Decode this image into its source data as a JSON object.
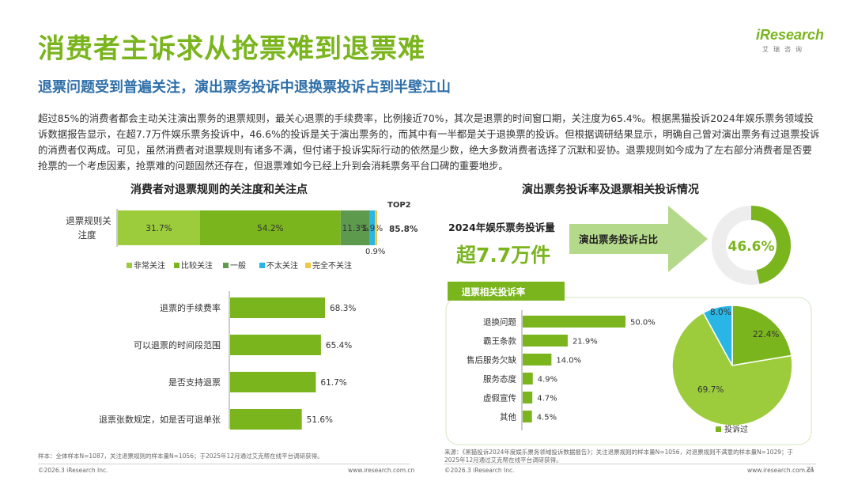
{
  "header": {
    "title": "消费者主诉求从抢票难到退票难",
    "subtitle": "退票问题受到普遍关注，演出票务投诉中退换票投诉占到半壁江山",
    "logo_main": "iResearch",
    "logo_sub": "艾瑞咨询"
  },
  "intro": "超过85%的消费者都会主动关注演出票务的退票规则，最关心退票的手续费率，比例接近70%，其次是退票的时间窗口期，关注度为65.4%。根据黑猫投诉2024年娱乐票务领域投诉数据报告显示，在超7.7万件娱乐票务投诉中，46.6%的投诉是关于演出票务的，而其中有一半都是关于退换票的投诉。但根据调研结果显示，明确自己曾对演出票务有过退票投诉的消费者仅两成。可见，虽然消费者对退票规则有诸多不满，但付诸于投诉实际行动的依然是少数，绝大多数消费者选择了沉默和妥协。退票规则如今成为了左右部分消费者是否要抢票的一个考虑因素，抢票难的问题固然还存在，但退票难如今已经上升到会消耗票务平台口碑的重要地步。",
  "left": {
    "section_title": "消费者对退票规则的关注度和关注点",
    "stack_label_line1": "退票规则关",
    "stack_label_line2": "注度",
    "top2_label": "TOP2",
    "top2_value": "85.8%",
    "small_note": "0.9%"
  },
  "right": {
    "section_title": "演出票务投诉率及退票相关投诉情况",
    "volume_label": "2024年娱乐票务投诉量",
    "volume_value": "超7.7万件",
    "arrow_label": "演出票务投诉占比",
    "donut_value_label": "46.6%",
    "tab_label": "退票相关投诉率",
    "pie_legend": "投诉过"
  },
  "colors": {
    "accent_green": "#7ab51d",
    "light_green": "#9ccc3c",
    "mid_green": "#6aa84f",
    "dark_gray_green": "#5a8a5a",
    "cyan": "#29b6e6",
    "yellow": "#f2c744",
    "blue_title": "#2f6fa8"
  },
  "chart_data": [
    {
      "type": "bar",
      "orientation": "horizontal-stacked",
      "categories": [
        "退票规则关注度"
      ],
      "series": [
        {
          "name": "非常关注",
          "values": [
            31.7
          ],
          "label": "31.7%",
          "color": "#9ccc3c"
        },
        {
          "name": "比较关注",
          "values": [
            54.2
          ],
          "label": "54.2%",
          "color": "#7ab51d"
        },
        {
          "name": "一般",
          "values": [
            11.3
          ],
          "label": "11.3%",
          "color": "#5e9a4e"
        },
        {
          "name": "不太关注",
          "values": [
            1.9
          ],
          "label": "1.9%",
          "color": "#29b6e6"
        },
        {
          "name": "完全不关注",
          "values": [
            0.9
          ],
          "label": "0.9%",
          "color": "#f2c744"
        }
      ]
    },
    {
      "type": "bar",
      "orientation": "horizontal",
      "categories": [
        "退票的手续费率",
        "可以退票的时间段范围",
        "是否支持退票",
        "退票张数规定，如是否可退单张"
      ],
      "values": [
        68.3,
        65.4,
        61.7,
        51.6
      ],
      "labels": [
        "68.3%",
        "65.4%",
        "61.7%",
        "51.6%"
      ]
    },
    {
      "type": "pie",
      "categories": [
        "演出票务投诉占比"
      ],
      "values": [
        46.6
      ],
      "labels": [
        "46.6%"
      ]
    },
    {
      "type": "bar",
      "orientation": "horizontal",
      "categories": [
        "退换问题",
        "霸王条款",
        "售后服务欠缺",
        "服务态度",
        "虚假宣传",
        "其他"
      ],
      "values": [
        50.0,
        21.9,
        14.0,
        4.9,
        4.7,
        4.5
      ],
      "labels": [
        "50.0%",
        "21.9%",
        "14.0%",
        "4.9%",
        "4.7%",
        "4.5%"
      ]
    },
    {
      "type": "pie",
      "legend": [
        "投诉过"
      ],
      "values": [
        22.4,
        69.7,
        8.0
      ],
      "labels": [
        "22.4%",
        "69.7%",
        "8.0%"
      ],
      "colors": [
        "#7ab51d",
        "#9ccc3c",
        "#29b6e6"
      ]
    }
  ],
  "footer": {
    "left_note": "样本：全体样本N=1087，关注退票规则的样本量N=1056；于2025年12月通过艾克帮在线平台调研获得。",
    "right_note_line1": "来源：《黑猫投诉2024年度娱乐票务领域投诉数据报告》；关注退票规则的样本量N=1056，对退票规则不满意的样本量N=1029；于",
    "right_note_line2": "2025年12月通过艾克帮在线平台调研获得。",
    "copyright_left": "©2026.3 iResearch Inc.",
    "url_left": "www.iresearch.com.cn",
    "copyright_right": "©2026.3 iResearch Inc.",
    "url_right": "www.iresearch.com.cn",
    "page": "21"
  }
}
